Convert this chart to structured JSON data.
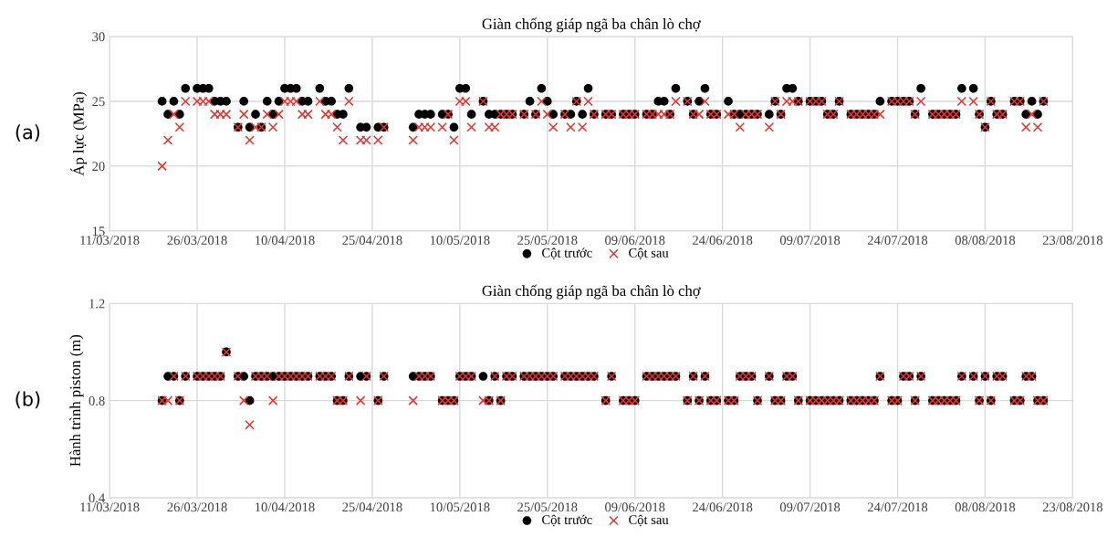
{
  "chart_data": [
    {
      "type": "scatter",
      "title": "Giàn chống giáp ngã ba chân lò chợ",
      "ylabel": "Áp lực (MPa)",
      "annotations": [
        "(a)"
      ],
      "x": [
        "2018-03-20",
        "2018-03-21",
        "2018-03-22",
        "2018-03-23",
        "2018-03-24",
        "2018-03-26",
        "2018-03-27",
        "2018-03-28",
        "2018-03-29",
        "2018-03-30",
        "2018-03-31",
        "2018-04-02",
        "2018-04-03",
        "2018-04-04",
        "2018-04-05",
        "2018-04-06",
        "2018-04-07",
        "2018-04-08",
        "2018-04-09",
        "2018-04-10",
        "2018-04-11",
        "2018-04-12",
        "2018-04-13",
        "2018-04-14",
        "2018-04-16",
        "2018-04-17",
        "2018-04-18",
        "2018-04-19",
        "2018-04-20",
        "2018-04-21",
        "2018-04-23",
        "2018-04-24",
        "2018-04-26",
        "2018-04-27",
        "2018-05-02",
        "2018-05-03",
        "2018-05-04",
        "2018-05-05",
        "2018-05-07",
        "2018-05-08",
        "2018-05-09",
        "2018-05-10",
        "2018-05-11",
        "2018-05-12",
        "2018-05-14",
        "2018-05-15",
        "2018-05-16",
        "2018-05-17",
        "2018-05-18",
        "2018-05-19",
        "2018-05-21",
        "2018-05-22",
        "2018-05-23",
        "2018-05-24",
        "2018-05-25",
        "2018-05-26",
        "2018-05-28",
        "2018-05-29",
        "2018-05-30",
        "2018-05-31",
        "2018-06-01",
        "2018-06-02",
        "2018-06-04",
        "2018-06-05",
        "2018-06-07",
        "2018-06-08",
        "2018-06-09",
        "2018-06-11",
        "2018-06-12",
        "2018-06-13",
        "2018-06-14",
        "2018-06-15",
        "2018-06-16",
        "2018-06-18",
        "2018-06-19",
        "2018-06-20",
        "2018-06-21",
        "2018-06-22",
        "2018-06-23",
        "2018-06-25",
        "2018-06-26",
        "2018-06-27",
        "2018-06-28",
        "2018-06-29",
        "2018-06-30",
        "2018-07-02",
        "2018-07-03",
        "2018-07-04",
        "2018-07-05",
        "2018-07-06",
        "2018-07-07",
        "2018-07-09",
        "2018-07-10",
        "2018-07-11",
        "2018-07-12",
        "2018-07-13",
        "2018-07-14",
        "2018-07-16",
        "2018-07-17",
        "2018-07-18",
        "2018-07-19",
        "2018-07-20",
        "2018-07-21",
        "2018-07-23",
        "2018-07-24",
        "2018-07-25",
        "2018-07-26",
        "2018-07-27",
        "2018-07-28",
        "2018-07-30",
        "2018-07-31",
        "2018-08-01",
        "2018-08-02",
        "2018-08-03",
        "2018-08-04",
        "2018-08-06",
        "2018-08-07",
        "2018-08-08",
        "2018-08-09",
        "2018-08-10",
        "2018-08-11",
        "2018-08-13",
        "2018-08-14",
        "2018-08-15",
        "2018-08-16",
        "2018-08-17",
        "2018-08-18"
      ],
      "series": [
        {
          "name": "Cột trước",
          "color": "#000000",
          "marker": "circle",
          "values": [
            25,
            24,
            25,
            24,
            26,
            26,
            26,
            26,
            25,
            25,
            25,
            23,
            25,
            23,
            24,
            23,
            25,
            24,
            25,
            26,
            26,
            26,
            25,
            25,
            26,
            25,
            25,
            24,
            24,
            26,
            23,
            23,
            23,
            23,
            23,
            24,
            24,
            24,
            24,
            24,
            23,
            26,
            26,
            24,
            25,
            24,
            24,
            24,
            24,
            24,
            24,
            25,
            24,
            26,
            25,
            24,
            24,
            24,
            25,
            24,
            26,
            24,
            24,
            24,
            24,
            24,
            24,
            24,
            24,
            25,
            25,
            24,
            26,
            25,
            24,
            25,
            26,
            24,
            24,
            25,
            24,
            24,
            24,
            24,
            24,
            24,
            25,
            24,
            26,
            26,
            25,
            25,
            25,
            25,
            24,
            24,
            25,
            24,
            24,
            24,
            24,
            24,
            25,
            25,
            25,
            25,
            25,
            24,
            26,
            24,
            24,
            24,
            24,
            24,
            26,
            26,
            24,
            23,
            25,
            24,
            24,
            25,
            25,
            24,
            25,
            24,
            25
          ]
        },
        {
          "name": "Cột sau",
          "color": "#e8322e",
          "marker": "cross",
          "values": [
            20,
            22,
            24,
            23,
            25,
            25,
            25,
            25,
            24,
            24,
            24,
            23,
            24,
            22,
            23,
            23,
            24,
            23,
            24,
            25,
            25,
            25,
            24,
            24,
            25,
            24,
            24,
            23,
            22,
            25,
            22,
            22,
            22,
            23,
            22,
            23,
            23,
            23,
            23,
            24,
            22,
            25,
            25,
            23,
            25,
            23,
            23,
            24,
            24,
            24,
            24,
            null,
            24,
            25,
            24,
            23,
            24,
            23,
            25,
            23,
            25,
            24,
            24,
            24,
            24,
            24,
            24,
            24,
            24,
            24,
            24,
            24,
            25,
            25,
            24,
            24,
            25,
            24,
            24,
            24,
            24,
            23,
            24,
            24,
            24,
            23,
            25,
            24,
            25,
            25,
            25,
            25,
            25,
            25,
            24,
            24,
            25,
            24,
            24,
            24,
            24,
            24,
            24,
            25,
            25,
            25,
            25,
            24,
            25,
            24,
            24,
            24,
            24,
            24,
            25,
            25,
            24,
            23,
            25,
            24,
            24,
            25,
            25,
            23,
            24,
            23,
            25
          ]
        }
      ],
      "xlim": [
        "2018-03-11",
        "2018-08-23"
      ],
      "xticks": [
        {
          "value": "2018-03-11",
          "label": "11/03/2018"
        },
        {
          "value": "2018-03-26",
          "label": "26/03/2018"
        },
        {
          "value": "2018-04-10",
          "label": "10/04/2018"
        },
        {
          "value": "2018-04-25",
          "label": "25/04/2018"
        },
        {
          "value": "2018-05-10",
          "label": "10/05/2018"
        },
        {
          "value": "2018-05-25",
          "label": "25/05/2018"
        },
        {
          "value": "2018-06-09",
          "label": "09/06/2018"
        },
        {
          "value": "2018-06-24",
          "label": "24/06/2018"
        },
        {
          "value": "2018-07-09",
          "label": "09/07/2018"
        },
        {
          "value": "2018-07-24",
          "label": "24/07/2018"
        },
        {
          "value": "2018-08-08",
          "label": "08/08/2018"
        },
        {
          "value": "2018-08-23",
          "label": "23/08/2018"
        }
      ],
      "ylim": [
        15,
        30
      ],
      "yticks": [
        15,
        20,
        25,
        30
      ],
      "grid": true,
      "legend": "bottom"
    },
    {
      "type": "scatter",
      "title": "Giàn chống giáp ngã ba chân lò chợ",
      "ylabel": "Hành trình piston (m)",
      "annotations": [
        "(b)"
      ],
      "x": [
        "2018-03-20",
        "2018-03-21",
        "2018-03-22",
        "2018-03-23",
        "2018-03-24",
        "2018-03-26",
        "2018-03-27",
        "2018-03-28",
        "2018-03-29",
        "2018-03-30",
        "2018-03-31",
        "2018-04-02",
        "2018-04-03",
        "2018-04-04",
        "2018-04-05",
        "2018-04-06",
        "2018-04-07",
        "2018-04-08",
        "2018-04-09",
        "2018-04-10",
        "2018-04-11",
        "2018-04-12",
        "2018-04-13",
        "2018-04-14",
        "2018-04-16",
        "2018-04-17",
        "2018-04-18",
        "2018-04-19",
        "2018-04-20",
        "2018-04-21",
        "2018-04-23",
        "2018-04-24",
        "2018-04-26",
        "2018-04-27",
        "2018-05-02",
        "2018-05-03",
        "2018-05-04",
        "2018-05-05",
        "2018-05-07",
        "2018-05-08",
        "2018-05-09",
        "2018-05-10",
        "2018-05-11",
        "2018-05-12",
        "2018-05-14",
        "2018-05-15",
        "2018-05-16",
        "2018-05-17",
        "2018-05-18",
        "2018-05-19",
        "2018-05-21",
        "2018-05-22",
        "2018-05-23",
        "2018-05-24",
        "2018-05-25",
        "2018-05-26",
        "2018-05-28",
        "2018-05-29",
        "2018-05-30",
        "2018-05-31",
        "2018-06-01",
        "2018-06-02",
        "2018-06-04",
        "2018-06-05",
        "2018-06-07",
        "2018-06-08",
        "2018-06-09",
        "2018-06-11",
        "2018-06-12",
        "2018-06-13",
        "2018-06-14",
        "2018-06-15",
        "2018-06-16",
        "2018-06-18",
        "2018-06-19",
        "2018-06-20",
        "2018-06-21",
        "2018-06-22",
        "2018-06-23",
        "2018-06-25",
        "2018-06-26",
        "2018-06-27",
        "2018-06-28",
        "2018-06-29",
        "2018-06-30",
        "2018-07-02",
        "2018-07-03",
        "2018-07-04",
        "2018-07-05",
        "2018-07-06",
        "2018-07-07",
        "2018-07-09",
        "2018-07-10",
        "2018-07-11",
        "2018-07-12",
        "2018-07-13",
        "2018-07-14",
        "2018-07-16",
        "2018-07-17",
        "2018-07-18",
        "2018-07-19",
        "2018-07-20",
        "2018-07-21",
        "2018-07-23",
        "2018-07-24",
        "2018-07-25",
        "2018-07-26",
        "2018-07-27",
        "2018-07-28",
        "2018-07-30",
        "2018-07-31",
        "2018-08-01",
        "2018-08-02",
        "2018-08-03",
        "2018-08-04",
        "2018-08-06",
        "2018-08-07",
        "2018-08-08",
        "2018-08-09",
        "2018-08-10",
        "2018-08-11",
        "2018-08-13",
        "2018-08-14",
        "2018-08-15",
        "2018-08-16",
        "2018-08-17",
        "2018-08-18"
      ],
      "series": [
        {
          "name": "Cột trước",
          "color": "#000000",
          "marker": "circle",
          "values": [
            0.8,
            0.9,
            0.9,
            0.8,
            0.9,
            0.9,
            0.9,
            0.9,
            0.9,
            0.9,
            1.0,
            0.9,
            0.9,
            0.8,
            0.9,
            0.9,
            0.9,
            0.9,
            0.9,
            0.9,
            0.9,
            0.9,
            0.9,
            0.9,
            0.9,
            0.9,
            0.9,
            0.8,
            0.8,
            0.9,
            0.9,
            0.9,
            0.8,
            0.9,
            0.9,
            0.9,
            0.9,
            0.9,
            0.8,
            0.8,
            0.8,
            0.9,
            0.9,
            0.9,
            0.9,
            0.8,
            0.9,
            0.8,
            0.9,
            0.9,
            0.9,
            0.9,
            0.9,
            0.9,
            0.9,
            0.9,
            0.9,
            0.9,
            0.9,
            0.9,
            0.9,
            0.9,
            0.8,
            0.9,
            0.8,
            0.8,
            0.8,
            0.9,
            0.9,
            0.9,
            0.9,
            0.9,
            0.9,
            0.8,
            0.9,
            0.8,
            0.9,
            0.8,
            0.8,
            0.8,
            0.8,
            0.9,
            0.9,
            0.9,
            0.8,
            0.9,
            0.8,
            0.8,
            0.9,
            0.9,
            0.8,
            0.8,
            0.8,
            0.8,
            0.8,
            0.8,
            0.8,
            0.8,
            0.8,
            0.8,
            0.8,
            0.8,
            0.9,
            0.8,
            0.8,
            0.9,
            0.9,
            0.8,
            0.9,
            0.8,
            0.8,
            0.8,
            0.8,
            0.8,
            0.9,
            0.9,
            0.8,
            0.9,
            0.8,
            0.9,
            0.9,
            0.8,
            0.8,
            0.9,
            0.9,
            0.8,
            0.8
          ]
        },
        {
          "name": "Cột sau",
          "color": "#e8322e",
          "marker": "cross",
          "values": [
            0.8,
            0.8,
            0.9,
            0.8,
            0.9,
            0.9,
            0.9,
            0.9,
            0.9,
            0.9,
            1.0,
            0.9,
            0.8,
            0.7,
            0.9,
            0.9,
            0.9,
            0.8,
            0.9,
            0.9,
            0.9,
            0.9,
            0.9,
            0.9,
            0.9,
            0.9,
            0.9,
            0.8,
            0.8,
            0.9,
            0.8,
            0.9,
            0.8,
            0.9,
            0.8,
            0.9,
            0.9,
            0.9,
            0.8,
            0.8,
            0.8,
            0.9,
            0.9,
            0.9,
            0.8,
            0.8,
            0.9,
            0.8,
            0.9,
            0.9,
            0.9,
            0.9,
            0.9,
            0.9,
            0.9,
            0.9,
            0.9,
            0.9,
            0.9,
            0.9,
            0.9,
            0.9,
            0.8,
            0.9,
            0.8,
            0.8,
            0.8,
            0.9,
            0.9,
            0.9,
            0.9,
            0.9,
            0.9,
            0.8,
            0.9,
            0.8,
            0.9,
            0.8,
            0.8,
            0.8,
            0.8,
            0.9,
            0.9,
            0.9,
            0.8,
            0.9,
            0.8,
            0.8,
            0.9,
            0.9,
            0.8,
            0.8,
            0.8,
            0.8,
            0.8,
            0.8,
            0.8,
            0.8,
            0.8,
            0.8,
            0.8,
            0.8,
            0.9,
            0.8,
            0.8,
            0.9,
            0.9,
            0.8,
            0.9,
            0.8,
            0.8,
            0.8,
            0.8,
            0.8,
            0.9,
            0.9,
            0.8,
            0.9,
            0.8,
            0.9,
            0.9,
            0.8,
            0.8,
            0.9,
            0.9,
            0.8,
            0.8
          ]
        }
      ],
      "xlim": [
        "2018-03-11",
        "2018-08-23"
      ],
      "xticks": [
        {
          "value": "2018-03-11",
          "label": "11/03/2018"
        },
        {
          "value": "2018-03-26",
          "label": "26/03/2018"
        },
        {
          "value": "2018-04-10",
          "label": "10/04/2018"
        },
        {
          "value": "2018-04-25",
          "label": "25/04/2018"
        },
        {
          "value": "2018-05-10",
          "label": "10/05/2018"
        },
        {
          "value": "2018-05-25",
          "label": "25/05/2018"
        },
        {
          "value": "2018-06-09",
          "label": "09/06/2018"
        },
        {
          "value": "2018-06-24",
          "label": "24/06/2018"
        },
        {
          "value": "2018-07-09",
          "label": "09/07/2018"
        },
        {
          "value": "2018-07-24",
          "label": "24/07/2018"
        },
        {
          "value": "2018-08-08",
          "label": "08/08/2018"
        },
        {
          "value": "2018-08-23",
          "label": "23/08/2018"
        }
      ],
      "ylim": [
        0.4,
        1.2
      ],
      "yticks": [
        0.4,
        0.8,
        1.2
      ],
      "grid": true,
      "legend": "bottom"
    }
  ]
}
